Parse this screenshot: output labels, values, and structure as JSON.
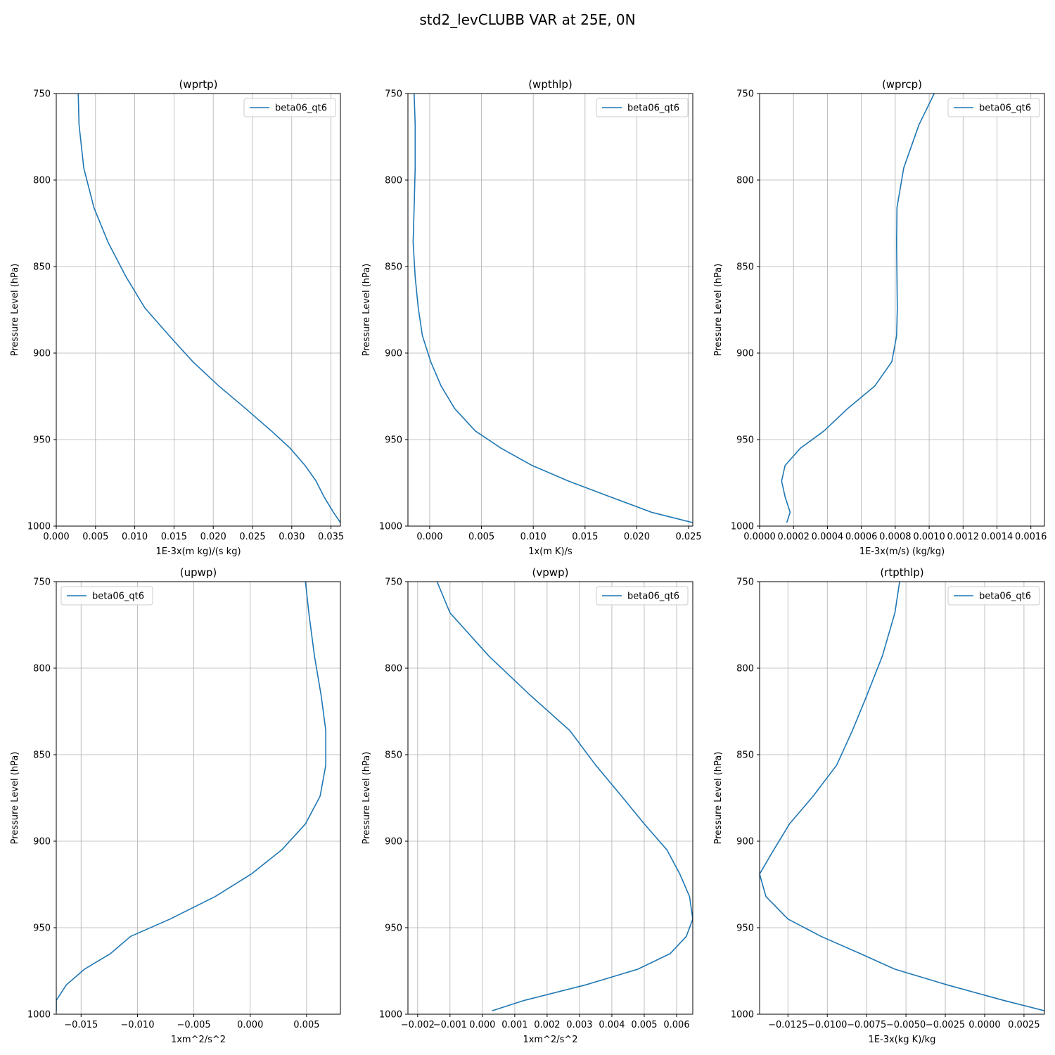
{
  "figure": {
    "title": "std2_levCLUBB VAR at 25E, 0N"
  },
  "colors": {
    "series": "#1f77b4",
    "grid": "#b0b0b0",
    "axes": "#000000",
    "legend_border": "#cccccc"
  },
  "chart_data": [
    {
      "type": "line",
      "title": "(wprtp)",
      "xlabel": "1E-3x(m kg)/(s kg)",
      "ylabel": "Pressure Level (hPa)",
      "xlim": [
        0.0,
        0.0362
      ],
      "ylim": [
        1000,
        750
      ],
      "xticks": [
        0.0,
        0.005,
        0.01,
        0.015,
        0.02,
        0.025,
        0.03,
        0.035
      ],
      "xticklabels": [
        "0.000",
        "0.005",
        "0.010",
        "0.015",
        "0.020",
        "0.025",
        "0.030",
        "0.035"
      ],
      "yticks": [
        750,
        800,
        850,
        900,
        950,
        1000
      ],
      "yticklabels": [
        "750",
        "800",
        "850",
        "900",
        "950",
        "1000"
      ],
      "grid": true,
      "legend_position": "top-right",
      "series": [
        {
          "name": "beta06_qt6",
          "x": [
            0.0028,
            0.0029,
            0.0035,
            0.0048,
            0.0066,
            0.0089,
            0.0113,
            0.0144,
            0.0174,
            0.0207,
            0.0241,
            0.0274,
            0.0298,
            0.0317,
            0.0331,
            0.0341,
            0.0353,
            0.0362
          ],
          "y": [
            750,
            768,
            793,
            816,
            836,
            856,
            874,
            890,
            905,
            919,
            932,
            945,
            955,
            965,
            974,
            983,
            992,
            998
          ]
        }
      ]
    },
    {
      "type": "line",
      "title": "(wpthlp)",
      "xlabel": "1x(m K)/s",
      "ylabel": "Pressure Level (hPa)",
      "xlim": [
        -0.0021,
        0.0254
      ],
      "ylim": [
        1000,
        750
      ],
      "xticks": [
        0.0,
        0.005,
        0.01,
        0.015,
        0.02,
        0.025
      ],
      "xticklabels": [
        "0.000",
        "0.005",
        "0.010",
        "0.015",
        "0.020",
        "0.025"
      ],
      "yticks": [
        750,
        800,
        850,
        900,
        950,
        1000
      ],
      "yticklabels": [
        "750",
        "800",
        "850",
        "900",
        "950",
        "1000"
      ],
      "grid": true,
      "legend_position": "top-right",
      "series": [
        {
          "name": "beta06_qt6",
          "x": [
            -0.0015,
            -0.0014,
            -0.0014,
            -0.0015,
            -0.0016,
            -0.0014,
            -0.0011,
            -0.0007,
            0.0001,
            0.0011,
            0.0024,
            0.0044,
            0.0069,
            0.0099,
            0.0134,
            0.0174,
            0.0214,
            0.0254
          ],
          "y": [
            750,
            768,
            793,
            816,
            836,
            856,
            874,
            890,
            905,
            919,
            932,
            945,
            955,
            965,
            974,
            983,
            992,
            998
          ]
        }
      ]
    },
    {
      "type": "line",
      "title": "(wprcp)",
      "xlabel": "1E-3x(m/s) (kg/kg)",
      "ylabel": "Pressure Level (hPa)",
      "xlim": [
        0.0,
        0.00168
      ],
      "ylim": [
        1000,
        750
      ],
      "xticks": [
        0.0,
        0.0002,
        0.0004,
        0.0006,
        0.0008,
        0.001,
        0.0012,
        0.0014,
        0.0016
      ],
      "xticklabels": [
        "0.0000",
        "0.0002",
        "0.0004",
        "0.0006",
        "0.0008",
        "0.0010",
        "0.0012",
        "0.0014",
        "0.0016"
      ],
      "yticks": [
        750,
        800,
        850,
        900,
        950,
        1000
      ],
      "yticklabels": [
        "750",
        "800",
        "850",
        "900",
        "950",
        "1000"
      ],
      "grid": true,
      "legend_position": "top-right",
      "series": [
        {
          "name": "beta06_qt6",
          "x": [
            0.00103,
            0.00094,
            0.00085,
            0.00081,
            0.000808,
            0.00081,
            0.000812,
            0.000808,
            0.00078,
            0.00068,
            0.00052,
            0.00038,
            0.00024,
            0.00015,
            0.00013,
            0.00015,
            0.00018,
            0.00016
          ],
          "y": [
            750,
            768,
            793,
            816,
            836,
            856,
            874,
            890,
            905,
            919,
            932,
            945,
            955,
            965,
            974,
            983,
            992,
            998
          ]
        }
      ]
    },
    {
      "type": "line",
      "title": "(upwp)",
      "xlabel": "1xm^2/s^2",
      "ylabel": "Pressure Level (hPa)",
      "xlim": [
        -0.0172,
        0.008
      ],
      "ylim": [
        1000,
        750
      ],
      "xticks": [
        -0.015,
        -0.01,
        -0.005,
        0.0,
        0.005
      ],
      "xticklabels": [
        "−0.015",
        "−0.010",
        "−0.005",
        "0.000",
        "0.005"
      ],
      "yticks": [
        750,
        800,
        850,
        900,
        950,
        1000
      ],
      "yticklabels": [
        "750",
        "800",
        "850",
        "900",
        "950",
        "1000"
      ],
      "grid": true,
      "legend_position": "top-left",
      "series": [
        {
          "name": "beta06_qt6",
          "x": [
            0.0049,
            0.0052,
            0.0057,
            0.0063,
            0.0067,
            0.0067,
            0.0062,
            0.0049,
            0.0028,
            0.0001,
            -0.0031,
            -0.0071,
            -0.0106,
            -0.0124,
            -0.0147,
            -0.0163,
            -0.0172,
            -0.0172
          ],
          "y": [
            750,
            768,
            793,
            816,
            836,
            856,
            874,
            890,
            905,
            919,
            932,
            945,
            955,
            965,
            974,
            983,
            992,
            998
          ]
        }
      ]
    },
    {
      "type": "line",
      "title": "(vpwp)",
      "xlabel": "1xm^2/s^2",
      "ylabel": "Pressure Level (hPa)",
      "xlim": [
        -0.0023,
        0.0065
      ],
      "ylim": [
        1000,
        750
      ],
      "xticks": [
        -0.002,
        -0.001,
        0.0,
        0.001,
        0.002,
        0.003,
        0.004,
        0.005,
        0.006
      ],
      "xticklabels": [
        "−0.002",
        "−0.001",
        "0.000",
        "0.001",
        "0.002",
        "0.003",
        "0.004",
        "0.005",
        "0.006"
      ],
      "yticks": [
        750,
        800,
        850,
        900,
        950,
        1000
      ],
      "yticklabels": [
        "750",
        "800",
        "850",
        "900",
        "950",
        "1000"
      ],
      "grid": true,
      "legend_position": "top-right",
      "series": [
        {
          "name": "beta06_qt6",
          "x": [
            -0.0014,
            -0.001,
            0.0002,
            0.0015,
            0.0027,
            0.0035,
            0.0043,
            0.005,
            0.0057,
            0.0061,
            0.0064,
            0.0065,
            0.0063,
            0.0058,
            0.0048,
            0.0032,
            0.0013,
            0.0003
          ],
          "y": [
            750,
            768,
            793,
            816,
            836,
            856,
            874,
            890,
            905,
            919,
            932,
            945,
            955,
            965,
            974,
            983,
            992,
            998
          ]
        }
      ]
    },
    {
      "type": "line",
      "title": "(rtpthlp)",
      "xlabel": "1E-3x(kg K)/kg",
      "ylabel": "Pressure Level (hPa)",
      "xlim": [
        -0.0143,
        0.0038
      ],
      "ylim": [
        1000,
        750
      ],
      "xticks": [
        -0.0125,
        -0.01,
        -0.0075,
        -0.005,
        -0.0025,
        0.0,
        0.0025
      ],
      "xticklabels": [
        "−0.0125",
        "−0.0100",
        "−0.0075",
        "−0.0050",
        "−0.0025",
        "0.0000",
        "0.0025"
      ],
      "yticks": [
        750,
        800,
        850,
        900,
        950,
        1000
      ],
      "yticklabels": [
        "750",
        "800",
        "850",
        "900",
        "950",
        "1000"
      ],
      "grid": true,
      "legend_position": "top-right",
      "series": [
        {
          "name": "beta06_qt6",
          "x": [
            -0.0054,
            -0.0057,
            -0.0065,
            -0.0075,
            -0.0084,
            -0.0094,
            -0.0109,
            -0.0124,
            -0.0134,
            -0.0143,
            -0.0139,
            -0.0125,
            -0.0104,
            -0.0079,
            -0.0057,
            -0.0024,
            0.0012,
            0.0038
          ],
          "y": [
            750,
            768,
            793,
            816,
            836,
            856,
            874,
            890,
            905,
            919,
            932,
            945,
            955,
            965,
            974,
            983,
            992,
            998
          ]
        }
      ]
    }
  ]
}
